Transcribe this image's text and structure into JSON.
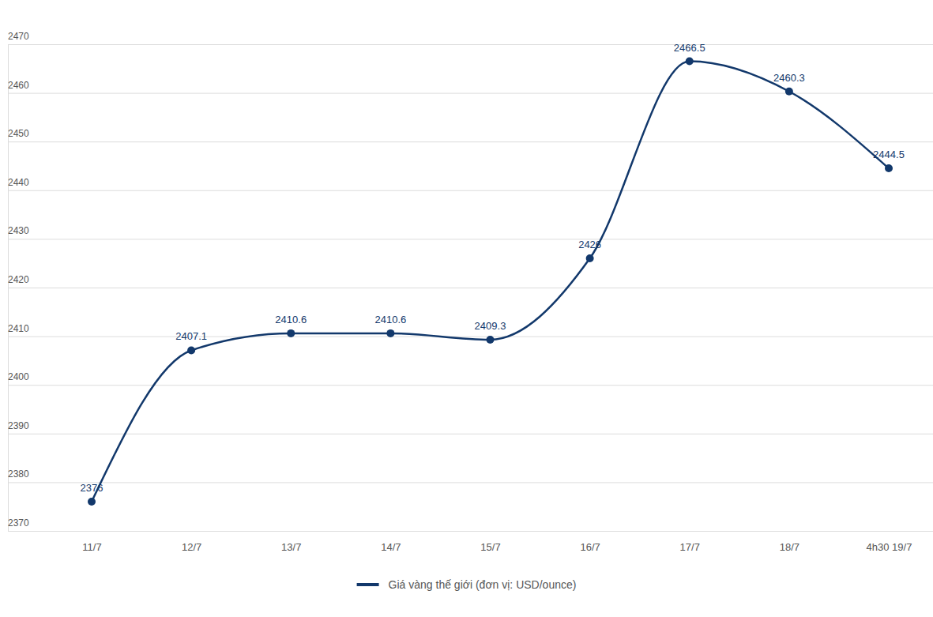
{
  "chart_data": {
    "type": "line",
    "categories": [
      "11/7",
      "12/7",
      "13/7",
      "14/7",
      "15/7",
      "16/7",
      "17/7",
      "18/7",
      "4h30 19/7"
    ],
    "series": [
      {
        "name": "Giá vàng thế giới (đơn vị: USD/ounce)",
        "color": "#12386b",
        "marker": "circle",
        "values": [
          2376,
          2407.1,
          2410.6,
          2410.6,
          2409.3,
          2426,
          2466.5,
          2460.3,
          2444.5
        ]
      }
    ],
    "ylim": [
      2370,
      2470
    ],
    "yticks": [
      2370,
      2380,
      2390,
      2400,
      2410,
      2420,
      2430,
      2440,
      2450,
      2460,
      2470
    ],
    "grid": true,
    "data_labels": true,
    "legend": "bottom"
  }
}
